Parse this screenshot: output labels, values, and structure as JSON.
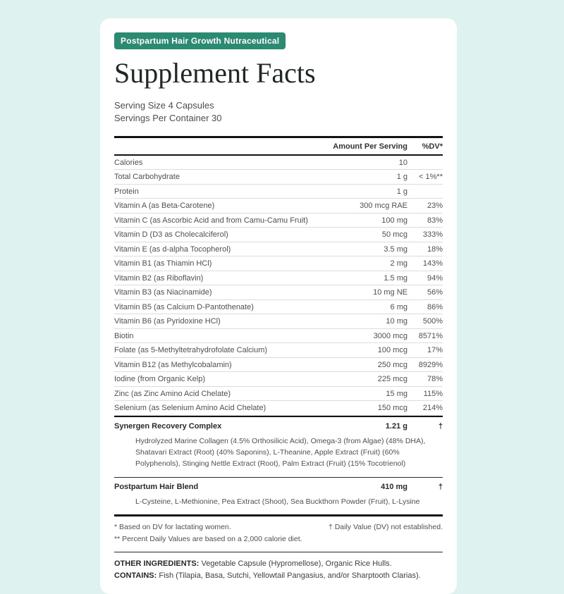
{
  "page": {
    "background_color": "#def3ef",
    "card_color": "#ffffff",
    "accent_color": "#2a8a72"
  },
  "header": {
    "badge": "Postpartum Hair Growth Nutraceutical",
    "title": "Supplement Facts",
    "serving_size": "Serving Size 4 Capsules",
    "servings_per_container": "Servings Per Container 30"
  },
  "table": {
    "col_amount": "Amount Per Serving",
    "col_dv": "%DV*",
    "rows": [
      {
        "name": "Calories",
        "amount": "10",
        "dv": ""
      },
      {
        "name": "Total Carbohydrate",
        "amount": "1 g",
        "dv": "< 1%**"
      },
      {
        "name": "Protein",
        "amount": "1 g",
        "dv": ""
      },
      {
        "name": "Vitamin A (as Beta-Carotene)",
        "amount": "300 mcg RAE",
        "dv": "23%"
      },
      {
        "name": "Vitamin C (as Ascorbic Acid and from Camu-Camu Fruit)",
        "amount": "100 mg",
        "dv": "83%"
      },
      {
        "name": "Vitamin D (D3 as Cholecalciferol)",
        "amount": "50 mcg",
        "dv": "333%"
      },
      {
        "name": "Vitamin E (as d-alpha Tocopherol)",
        "amount": "3.5 mg",
        "dv": "18%"
      },
      {
        "name": "Vitamin B1 (as Thiamin HCl)",
        "amount": "2 mg",
        "dv": "143%"
      },
      {
        "name": "Vitamin B2 (as Riboflavin)",
        "amount": "1.5 mg",
        "dv": "94%"
      },
      {
        "name": "Vitamin B3 (as Niacinamide)",
        "amount": "10 mg NE",
        "dv": "56%"
      },
      {
        "name": "Vitamin B5 (as Calcium D-Pantothenate)",
        "amount": "6 mg",
        "dv": "86%"
      },
      {
        "name": "Vitamin B6 (as Pyridoxine HCl)",
        "amount": "10 mg",
        "dv": "500%"
      },
      {
        "name": "Biotin",
        "amount": "3000 mccg",
        "dv": "8571%"
      },
      {
        "name": "Folate (as 5-Methyltetrahydrofolate Calcium)",
        "amount": "100 mcg",
        "dv": "17%"
      },
      {
        "name": "Vitamin B12 (as Methylcobalamin)",
        "amount": "250 mcg",
        "dv": "8929%"
      },
      {
        "name": "Iodine (from Organic Kelp)",
        "amount": "225 mcg",
        "dv": "78%"
      },
      {
        "name": "Zinc (as Zinc Amino Acid Chelate)",
        "amount": "15 mg",
        "dv": "115%"
      },
      {
        "name": "Selenium (as Selenium Amino Acid Chelate)",
        "amount": "150 mcg",
        "dv": "214%"
      }
    ],
    "blends": [
      {
        "name": "Synergen Recovery Complex",
        "amount": "1.21 g",
        "dv": "†",
        "ingredients": "Hydrolyzed Marine Collagen (4.5% Orthosilicic Acid), Omega-3 (from Algae) (48% DHA), Shatavari Extract (Root) (40% Saponins), L-Theanine, Apple Extract (Fruit) (60% Polyphenols), Stinging Nettle Extract (Root), Palm Extract (Fruit) (15% Tocotrienol)"
      },
      {
        "name": "Postpartum Hair Blend",
        "amount": "410 mg",
        "dv": "†",
        "ingredients": "L-Cysteine, L-Methionine, Pea Extract (Shoot), Sea Buckthorn Powder (Fruit), L-Lysine"
      }
    ]
  },
  "footnotes": {
    "lactating": "* Based on DV for lactating women.",
    "dv_not_established": "† Daily Value (DV) not established.",
    "calorie_diet": "** Percent Daily Values are based on a 2,000 calorie diet."
  },
  "other": {
    "other_ingredients_label": "OTHER INGREDIENTS:",
    "other_ingredients_text": " Vegetable Capsule (Hypromellose), Organic Rice Hulls.",
    "contains_label": "CONTAINS:",
    "contains_text": " Fish (Tilapia, Basa, Sutchi, Yellowtail Pangasius, and/or Sharptooth Clarias)."
  }
}
